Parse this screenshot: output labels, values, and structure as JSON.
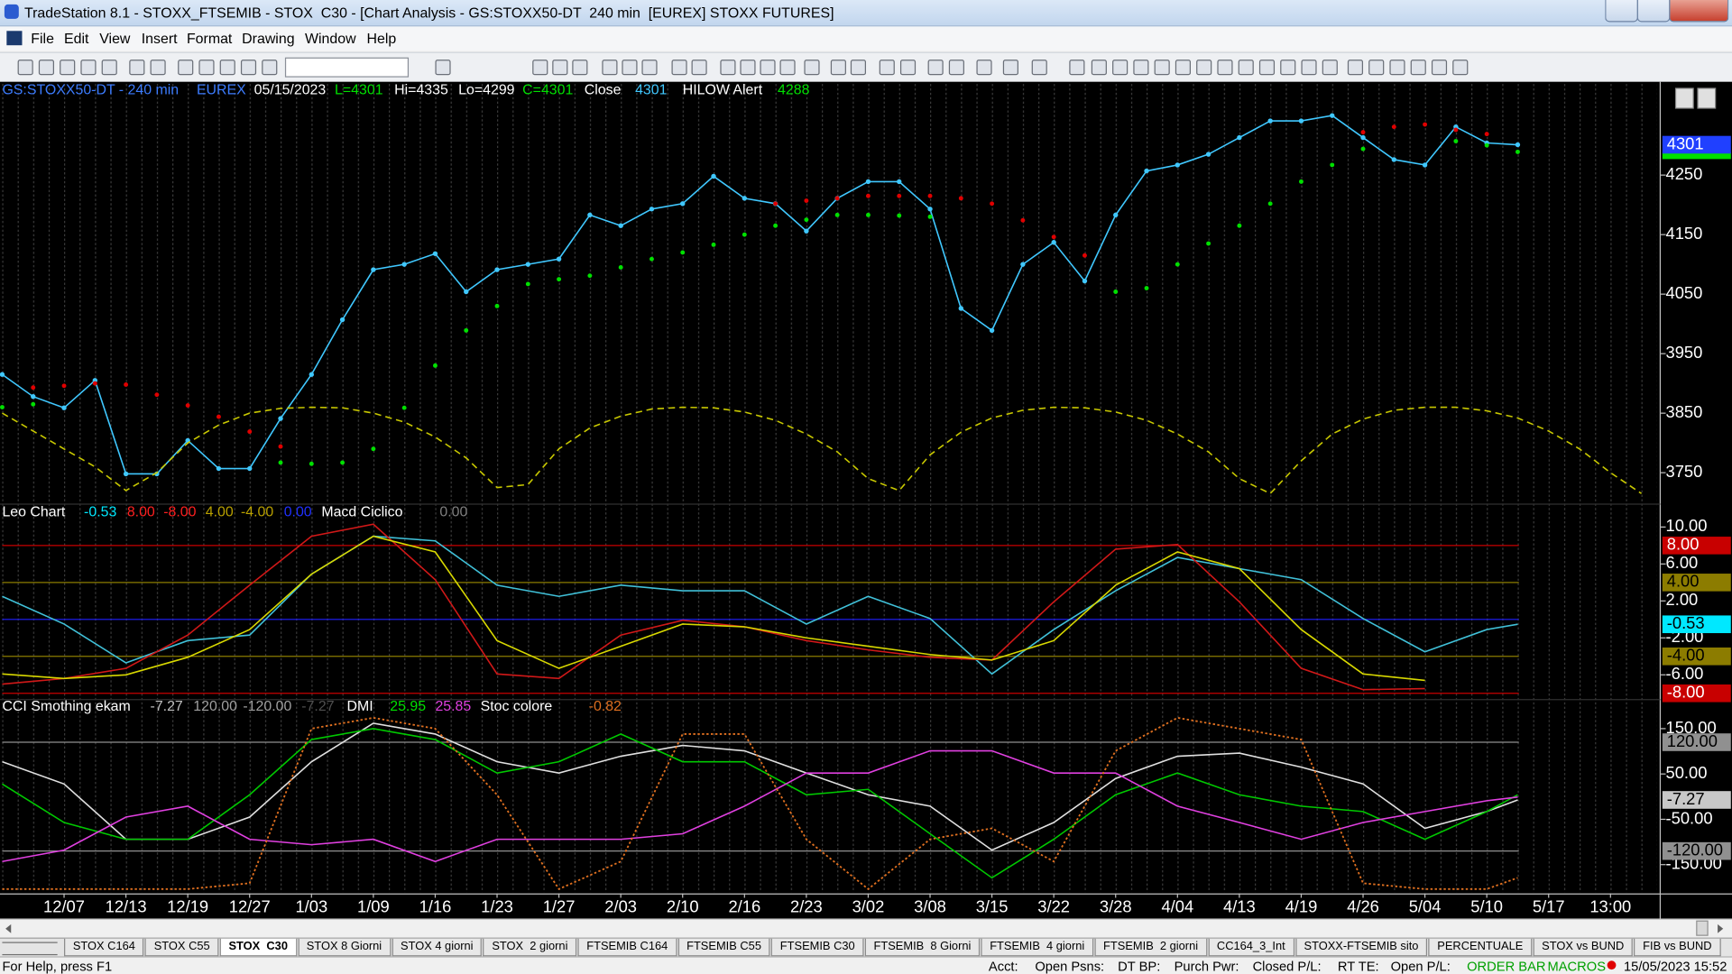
{
  "window": {
    "title": "TradeStation 8.1 - STOXX_FTSEMIB - STOX  C30 - [Chart Analysis - GS:STOXX50-DT  240 min  [EUREX] STOXX FUTURES]",
    "menu": [
      "File",
      "Edit",
      "View",
      "Insert",
      "Format",
      "Drawing",
      "Window",
      "Help"
    ]
  },
  "chart_data": [
    {
      "type": "line",
      "header": [
        {
          "text": "GS:STOXX50-DT - 240 min",
          "color": "#3c7cff"
        },
        {
          "text": "EUREX",
          "color": "#3c7cff"
        },
        {
          "text": "05/15/2023",
          "color": "#ffffff"
        },
        {
          "text": "L=4301",
          "color": "#00e000"
        },
        {
          "text": "Hi=4335",
          "color": "#ffffff"
        },
        {
          "text": "Lo=4299",
          "color": "#ffffff"
        },
        {
          "text": "C=4301",
          "color": "#00e000"
        },
        {
          "text": "Close",
          "color": "#ffffff"
        },
        {
          "text": "4301",
          "color": "#40c8ff"
        },
        {
          "text": "HILOW Alert",
          "color": "#ffffff"
        },
        {
          "text": "4288",
          "color": "#00e000"
        }
      ],
      "xlim": [
        0,
        26.75
      ],
      "x": [
        0,
        0.5,
        1,
        1.5,
        2,
        2.5,
        3,
        3.5,
        4,
        4.5,
        5,
        5.5,
        6,
        6.5,
        7,
        7.5,
        8,
        8.5,
        9,
        9.5,
        10,
        10.5,
        11,
        11.5,
        12,
        12.5,
        13,
        13.5,
        14,
        14.5,
        15,
        15.5,
        16,
        16.5,
        17,
        17.5,
        18,
        18.5,
        19,
        19.5,
        20,
        20.5,
        21,
        21.5,
        22,
        22.5,
        23,
        23.5,
        24,
        24.5,
        25,
        25.5,
        26,
        26.5
      ],
      "ylim": [
        3700,
        4405
      ],
      "yticks": [
        4250,
        4150,
        4050,
        3950,
        3850,
        3750
      ],
      "series": [
        {
          "color": "#40c8ff",
          "style": "line-dots",
          "values": [
            3915,
            3878,
            3859,
            3905,
            3748,
            3748,
            3804,
            3757,
            3757,
            3841,
            3915,
            4007,
            4091,
            4100,
            4118,
            4054,
            4091,
            4100,
            4109,
            4183,
            4165,
            4193,
            4202,
            4248,
            4211,
            4202,
            4156,
            4211,
            4239,
            4239,
            4193,
            4026,
            3989,
            4100,
            4137,
            4072,
            4183,
            4257,
            4267,
            4285,
            4313,
            4341,
            4341,
            4350,
            4313,
            4276,
            4267,
            4331,
            4304,
            4301,
            null,
            null,
            null,
            null
          ]
        },
        {
          "color": "#00e000",
          "style": "dots",
          "values": [
            3860,
            3865,
            null,
            null,
            null,
            null,
            null,
            null,
            null,
            3767,
            3765,
            3767,
            3790,
            3859,
            3930,
            3989,
            4030,
            4067,
            4075,
            4081,
            4095,
            4109,
            4120,
            4133,
            4150,
            4165,
            4175,
            4183,
            4183,
            4182,
            4180,
            null,
            null,
            null,
            null,
            null,
            4054,
            4060,
            4100,
            4135,
            4165,
            4202,
            4239,
            4267,
            4294,
            null,
            null,
            4307,
            4300,
            4289,
            null,
            null,
            null,
            null
          ]
        },
        {
          "color": "#e00000",
          "style": "dots",
          "values": [
            null,
            3893,
            3896,
            3900,
            3898,
            3881,
            3863,
            3844,
            3819,
            3794,
            null,
            null,
            null,
            null,
            null,
            null,
            null,
            null,
            null,
            null,
            null,
            null,
            null,
            null,
            null,
            4202,
            4207,
            4211,
            4215,
            4215,
            4215,
            4211,
            4202,
            4174,
            4146,
            4115,
            null,
            null,
            null,
            null,
            null,
            null,
            null,
            null,
            4322,
            4331,
            4335,
            4326,
            4319,
            null,
            null,
            null,
            null,
            null
          ]
        },
        {
          "color": "#c8c800",
          "style": "dashed",
          "values": [
            3850,
            3820,
            3790,
            3760,
            3720,
            3750,
            3800,
            3830,
            3850,
            3858,
            3860,
            3859,
            3850,
            3835,
            3810,
            3775,
            3725,
            3730,
            3790,
            3825,
            3845,
            3857,
            3860,
            3859,
            3852,
            3838,
            3815,
            3785,
            3740,
            3720,
            3780,
            3818,
            3842,
            3855,
            3860,
            3859,
            3852,
            3838,
            3815,
            3785,
            3740,
            3715,
            3770,
            3815,
            3840,
            3855,
            3860,
            3860,
            3854,
            3842,
            3820,
            3790,
            3750,
            3715
          ]
        }
      ],
      "markers": [
        {
          "value": 4288,
          "color": "#00e000"
        },
        {
          "value": 4301,
          "label": "4301",
          "color": "#2040ff",
          "text_color": "#ffffff"
        }
      ]
    },
    {
      "type": "line",
      "header": [
        {
          "text": "Leo Chart",
          "color": "#ffffff"
        },
        {
          "text": "-0.53",
          "color": "#00e8ff"
        },
        {
          "text": "8.00",
          "color": "#ff2020"
        },
        {
          "text": "-8.00",
          "color": "#ff2020"
        },
        {
          "text": "4.00",
          "color": "#b8a000"
        },
        {
          "text": "-4.00",
          "color": "#b8a000"
        },
        {
          "text": "0.00",
          "color": "#2030ff"
        },
        {
          "text": "Macd Ciclico",
          "color": "#ffffff"
        },
        {
          "text": "0.00",
          "color": "#808080"
        }
      ],
      "xlim": [
        0,
        26.75
      ],
      "x": [
        0,
        1,
        2,
        3,
        4,
        5,
        6,
        7,
        8,
        9,
        10,
        11,
        12,
        13,
        14,
        15,
        16,
        17,
        18,
        19,
        20,
        21,
        22,
        23,
        24,
        24.5
      ],
      "ylim": [
        -8.5,
        12.3
      ],
      "yticks": [
        {
          "value": 10,
          "label": "10.00"
        },
        {
          "value": 6,
          "label": "6.00"
        },
        {
          "value": 2,
          "label": "2.00"
        },
        {
          "value": -2,
          "label": "-2.00"
        },
        {
          "value": -6,
          "label": "-6.00"
        }
      ],
      "levels": [
        {
          "value": 8,
          "label": "8.00",
          "color": "#c80000",
          "text_color": "#ffffff"
        },
        {
          "value": 4,
          "label": "4.00",
          "color": "#8c7c00",
          "text_color": "#000000"
        },
        {
          "value": 0,
          "color": "#2020ff"
        },
        {
          "value": -4,
          "label": "-4.00",
          "color": "#8c7c00",
          "text_color": "#000000"
        },
        {
          "value": -8,
          "label": "-8.00",
          "color": "#c80000",
          "text_color": "#ffffff"
        }
      ],
      "markers": [
        {
          "value": -0.53,
          "label": "-0.53",
          "color": "#00e8ff",
          "text_color": "#000000"
        }
      ],
      "series": [
        {
          "color": "#40c0d8",
          "style": "line",
          "values": [
            2.5,
            -0.5,
            -4.7,
            -2.3,
            -1.7,
            4.9,
            9.0,
            8.5,
            3.7,
            2.5,
            3.7,
            3.1,
            3.1,
            -0.5,
            2.5,
            0.1,
            -5.9,
            -1.1,
            3.1,
            6.7,
            5.5,
            4.3,
            0.1,
            -3.5,
            -1.1,
            -0.53
          ]
        },
        {
          "color": "#d01818",
          "style": "line",
          "values": [
            -7.0,
            -6.4,
            -5.3,
            -1.7,
            3.7,
            9.0,
            10.3,
            4.3,
            -5.9,
            -6.4,
            -1.7,
            -0.1,
            -0.8,
            -2.3,
            -3.3,
            -4.1,
            -4.4,
            1.9,
            7.6,
            8.1,
            1.9,
            -5.3,
            -7.6,
            -7.5,
            null,
            null
          ]
        },
        {
          "color": "#d8d800",
          "style": "line",
          "values": [
            -5.9,
            -6.4,
            -6.0,
            -4.1,
            -1.1,
            4.9,
            9.0,
            7.3,
            -2.3,
            -5.3,
            -2.9,
            -0.5,
            -0.8,
            -2.0,
            -2.9,
            -3.8,
            -4.4,
            -2.3,
            3.7,
            7.3,
            5.5,
            -1.1,
            -5.9,
            -6.6,
            null,
            null
          ]
        }
      ]
    },
    {
      "type": "line",
      "header": [
        {
          "text": "CCI Smothing ekam",
          "color": "#ffffff"
        },
        {
          "text": "-7.27",
          "color": "#c0c0c0"
        },
        {
          "text": "120.00",
          "color": "#a0a0a0"
        },
        {
          "text": "-120.00",
          "color": "#a0a0a0"
        },
        {
          "text": "-7.27",
          "color": "#505050"
        },
        {
          "text": "DMI",
          "color": "#ffffff"
        },
        {
          "text": "25.95",
          "color": "#00e000"
        },
        {
          "text": "25.85",
          "color": "#e040e0"
        },
        {
          "text": "Stoc colore",
          "color": "#ffffff"
        },
        {
          "text": "-0.82",
          "color": "#e07020"
        }
      ],
      "xlim": [
        0,
        26.75
      ],
      "x": [
        0,
        1,
        2,
        3,
        4,
        5,
        6,
        7,
        8,
        9,
        10,
        11,
        12,
        13,
        14,
        15,
        16,
        17,
        18,
        19,
        20,
        21,
        22,
        23,
        24,
        24.5
      ],
      "ylim": [
        -211,
        208
      ],
      "yticks": [
        {
          "value": 150,
          "label": "150.00"
        },
        {
          "value": 50,
          "label": "50.00"
        },
        {
          "value": -50,
          "label": "-50.00"
        },
        {
          "value": -150,
          "label": "-150.00"
        }
      ],
      "levels": [
        {
          "value": 120,
          "label": "120.00",
          "color": "#909090",
          "text_color": "#000000"
        },
        {
          "value": -120,
          "label": "-120.00",
          "color": "#909090",
          "text_color": "#000000"
        }
      ],
      "markers": [
        {
          "value": -7.27,
          "label": "-7.27",
          "color": "#c8c8c8",
          "text_color": "#000000"
        }
      ],
      "series": [
        {
          "color": "#e0e0e0",
          "style": "line",
          "values": [
            77,
            28,
            -94,
            -94,
            -45,
            77,
            162,
            138,
            77,
            52,
            89,
            113,
            101,
            52,
            4,
            -21,
            -118,
            -57,
            40,
            89,
            96,
            65,
            28,
            -70,
            -33,
            -7.27
          ]
        },
        {
          "color": "#00c800",
          "style": "line",
          "values": [
            28,
            -57,
            -94,
            -94,
            4,
            126,
            150,
            126,
            52,
            77,
            138,
            77,
            77,
            4,
            16,
            -82,
            -179,
            -94,
            4,
            52,
            4,
            -21,
            -33,
            -94,
            -33,
            4
          ]
        },
        {
          "color": "#e040e0",
          "style": "line",
          "values": [
            -143,
            -118,
            -45,
            -21,
            -94,
            -106,
            -94,
            -143,
            -94,
            -94,
            -94,
            -82,
            -21,
            52,
            52,
            101,
            101,
            52,
            52,
            -21,
            -57,
            -94,
            -57,
            -33,
            -9,
            -1
          ]
        },
        {
          "color": "#e07020",
          "style": "dotted",
          "values": [
            -204,
            -204,
            -204,
            -204,
            -191,
            150,
            174,
            150,
            4,
            -204,
            -143,
            138,
            138,
            -94,
            -204,
            -94,
            -70,
            -143,
            101,
            174,
            150,
            126,
            -191,
            -204,
            -204,
            -179
          ]
        }
      ],
      "xticks": [
        {
          "value": 1,
          "label": "12/07"
        },
        {
          "value": 2,
          "label": "12/13"
        },
        {
          "value": 3,
          "label": "12/19"
        },
        {
          "value": 4,
          "label": "12/27"
        },
        {
          "value": 5,
          "label": "1/03"
        },
        {
          "value": 6,
          "label": "1/09"
        },
        {
          "value": 7,
          "label": "1/16"
        },
        {
          "value": 8,
          "label": "1/23"
        },
        {
          "value": 9,
          "label": "1/27"
        },
        {
          "value": 10,
          "label": "2/03"
        },
        {
          "value": 11,
          "label": "2/10"
        },
        {
          "value": 12,
          "label": "2/16"
        },
        {
          "value": 13,
          "label": "2/23"
        },
        {
          "value": 14,
          "label": "3/02"
        },
        {
          "value": 15,
          "label": "3/08"
        },
        {
          "value": 16,
          "label": "3/15"
        },
        {
          "value": 17,
          "label": "3/22"
        },
        {
          "value": 18,
          "label": "3/28"
        },
        {
          "value": 19,
          "label": "4/04"
        },
        {
          "value": 20,
          "label": "4/13"
        },
        {
          "value": 21,
          "label": "4/19"
        },
        {
          "value": 22,
          "label": "4/26"
        },
        {
          "value": 23,
          "label": "5/04"
        },
        {
          "value": 24,
          "label": "5/10"
        },
        {
          "value": 25,
          "label": "5/17"
        },
        {
          "value": 26,
          "label": "13:00"
        }
      ]
    }
  ],
  "tabs": [
    "STOX C164",
    "STOX C55",
    "STOX  C30",
    "STOX 8 Giorni",
    "STOX 4 giorni",
    "STOX  2 giorni",
    "FTSEMIB C164",
    "FTSEMIB C55",
    "FTSEMIB C30",
    "FTSEMIB  8 Giorni",
    "FTSEMIB  4 giorni",
    "FTSEMIB  2 giorni",
    "CC164_3_Int",
    "STOXX-FTSEMIB sito",
    "PERCENTUALE",
    "STOX vs BUND",
    "FIB vs BUND"
  ],
  "active_tab": 2,
  "status_bar": {
    "help": "For Help, press F1",
    "fields": [
      "Acct:",
      "Open Psns:",
      "DT BP:",
      "Purch Pwr:",
      "Closed P/L:",
      "RT TE:",
      "Open P/L:"
    ],
    "order_bar": "ORDER BAR",
    "macros": "MACROS",
    "datetime": "15/05/2023 15:52"
  }
}
